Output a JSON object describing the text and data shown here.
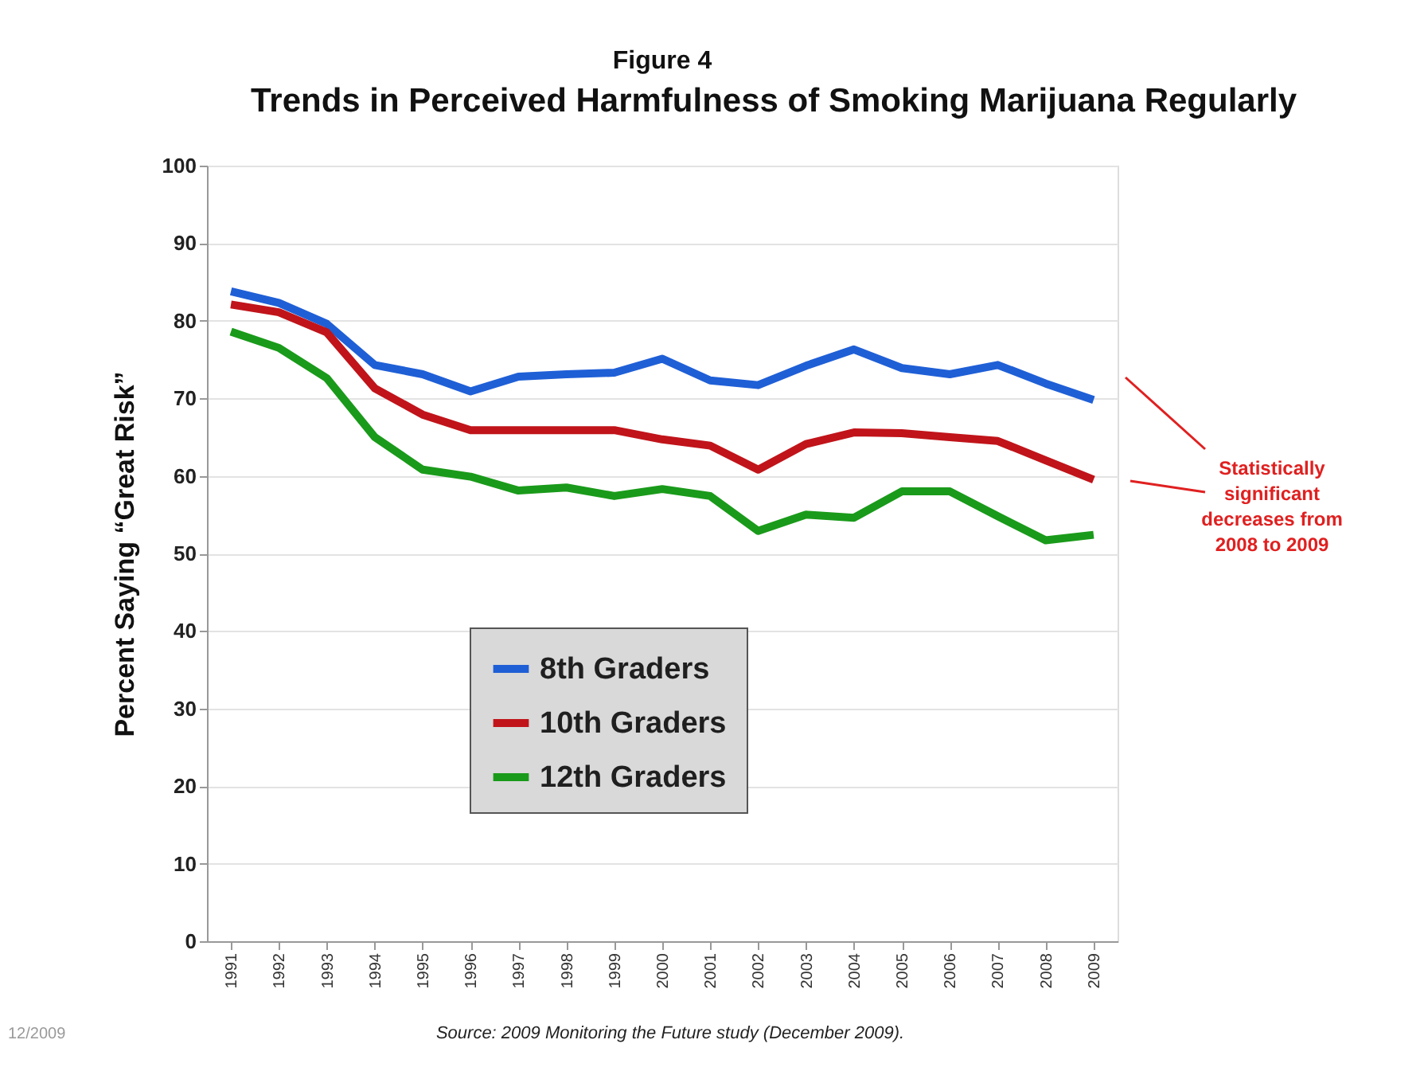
{
  "chart_data": {
    "type": "line",
    "title": "Trends in Perceived Harmfulness of Smoking Marijuana Regularly",
    "ylabel": "Percent Saying “Great Risk”",
    "categories": [
      "1991",
      "1992",
      "1993",
      "1994",
      "1995",
      "1996",
      "1997",
      "1998",
      "1999",
      "2000",
      "2001",
      "2002",
      "2003",
      "2004",
      "2005",
      "2006",
      "2007",
      "2008",
      "2009"
    ],
    "series": [
      {
        "name": "8th Graders",
        "color": "#1f5fd6",
        "values": [
          83.8,
          82.3,
          79.6,
          74.3,
          73.1,
          70.9,
          72.8,
          73.1,
          73.3,
          75.1,
          72.3,
          71.7,
          74.2,
          76.3,
          73.9,
          73.1,
          74.3,
          71.9,
          69.8
        ]
      },
      {
        "name": "10th Graders",
        "color": "#c0141a",
        "values": [
          82.1,
          81.1,
          78.5,
          71.3,
          67.9,
          65.9,
          65.9,
          65.9,
          65.9,
          64.7,
          63.9,
          60.8,
          64.1,
          65.6,
          65.5,
          65.0,
          64.5,
          62.0,
          59.5
        ]
      },
      {
        "name": "12th Graders",
        "color": "#1a9a1a",
        "values": [
          78.6,
          76.5,
          72.6,
          65.0,
          60.8,
          59.9,
          58.1,
          58.5,
          57.4,
          58.3,
          57.4,
          52.9,
          55.0,
          54.6,
          58.0,
          58.0,
          54.8,
          51.7,
          52.4
        ]
      }
    ],
    "ylim": [
      0,
      100
    ],
    "yticks": [
      0,
      10,
      20,
      30,
      40,
      50,
      60,
      70,
      80,
      90,
      100
    ],
    "grid": "y",
    "legend": "bottom",
    "marker": "none",
    "line_style": "solid",
    "annotations": [
      "Figure 4",
      "Statistically\nsignificant\ndecreases from\n2008 to 2009",
      "Source:  2009 Monitoring the Future study (December 2009).",
      "12/2009"
    ]
  }
}
